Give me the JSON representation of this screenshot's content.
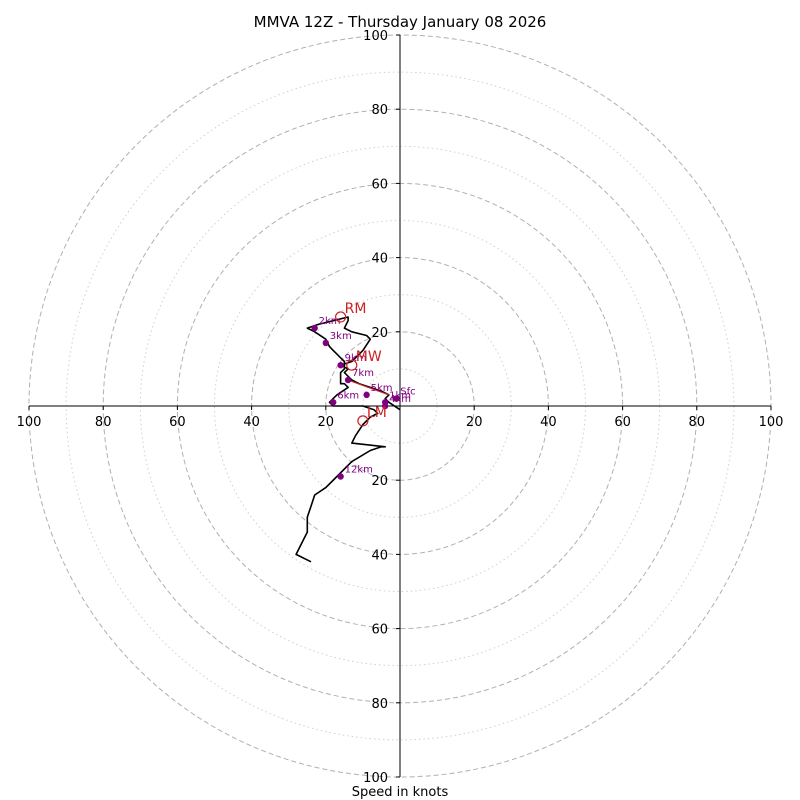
{
  "chart_data": {
    "type": "hodograph",
    "title": "MMVA 12Z - Thursday January 08 2026",
    "xlabel": "Speed in knots",
    "range": [
      -100,
      100
    ],
    "rings_major": [
      20,
      40,
      60,
      80,
      100
    ],
    "rings_minor": [
      10,
      30,
      50,
      70,
      90
    ],
    "x_tick_labels": [
      "100",
      "80",
      "60",
      "40",
      "20",
      "20",
      "40",
      "60",
      "80",
      "100"
    ],
    "y_tick_labels_top": [
      "20",
      "40",
      "60",
      "80",
      "100"
    ],
    "y_tick_labels_bottom": [
      "20",
      "40",
      "60",
      "80",
      "100"
    ],
    "wind_trace": [
      [
        0,
        -1
      ],
      [
        -3,
        1
      ],
      [
        -4,
        2
      ],
      [
        -3,
        3
      ],
      [
        -5,
        4
      ],
      [
        -8,
        5
      ],
      [
        -11,
        6
      ],
      [
        -13,
        7
      ],
      [
        -14,
        8
      ],
      [
        -15,
        9
      ],
      [
        -14,
        10
      ],
      [
        -16,
        11
      ],
      [
        -13,
        12
      ],
      [
        -10,
        15
      ],
      [
        -8,
        18
      ],
      [
        -9,
        19
      ],
      [
        -13,
        20
      ],
      [
        -15,
        21
      ],
      [
        -14,
        23
      ],
      [
        -14,
        24
      ],
      [
        -18,
        23
      ],
      [
        -22,
        22
      ],
      [
        -25,
        21
      ],
      [
        -23,
        20
      ],
      [
        -20,
        18
      ],
      [
        -19,
        16
      ],
      [
        -18,
        15
      ],
      [
        -17,
        14
      ],
      [
        -16,
        13
      ],
      [
        -15,
        12
      ],
      [
        -15,
        11
      ],
      [
        -15,
        10
      ],
      [
        -16,
        9
      ],
      [
        -16,
        8
      ],
      [
        -16,
        7
      ],
      [
        -16,
        6
      ],
      [
        -15,
        6
      ],
      [
        -14,
        5
      ],
      [
        -17,
        3
      ],
      [
        -18,
        2
      ],
      [
        -19,
        1
      ],
      [
        -18,
        0
      ],
      [
        -10,
        0
      ],
      [
        -7,
        -1
      ],
      [
        -6,
        -2
      ],
      [
        -8,
        -3
      ],
      [
        -10,
        -5
      ],
      [
        -12,
        -8
      ],
      [
        -13,
        -10
      ],
      [
        -4,
        -11
      ],
      [
        -5,
        -11
      ],
      [
        -8,
        -12
      ],
      [
        -13,
        -15
      ],
      [
        -17,
        -19
      ],
      [
        -20,
        -22
      ],
      [
        -23,
        -24
      ],
      [
        -24,
        -27
      ],
      [
        -25,
        -30
      ],
      [
        -25,
        -34
      ],
      [
        -26,
        -36
      ],
      [
        -28,
        -40
      ],
      [
        -24,
        -42
      ]
    ],
    "height_markers": [
      {
        "label": "Sfc",
        "u": -1,
        "v": 2
      },
      {
        "label": "1km",
        "u": -4,
        "v": 1
      },
      {
        "label": "2km",
        "u": -23,
        "v": 21
      },
      {
        "label": "3km",
        "u": -20,
        "v": 17
      },
      {
        "label": "4km",
        "u": -4,
        "v": 0
      },
      {
        "label": "5km",
        "u": -9,
        "v": 3
      },
      {
        "label": "6km",
        "u": -18,
        "v": 1
      },
      {
        "label": "7km",
        "u": -14,
        "v": 7
      },
      {
        "label": "9km",
        "u": -16,
        "v": 11
      },
      {
        "label": "12km",
        "u": -16,
        "v": -19
      }
    ],
    "storm_motions": [
      {
        "label": "RM",
        "u": -16,
        "v": 24
      },
      {
        "label": "MW",
        "u": -13,
        "v": 11
      },
      {
        "label": "LM",
        "u": -10,
        "v": -4
      }
    ],
    "shear_vector": {
      "from": [
        -3,
        3
      ],
      "to": [
        -14,
        7
      ]
    },
    "colors": {
      "trace": "#000000",
      "markers": "#800080",
      "storm_motion": "#cc2222",
      "rings": "#b0b0b0"
    }
  }
}
